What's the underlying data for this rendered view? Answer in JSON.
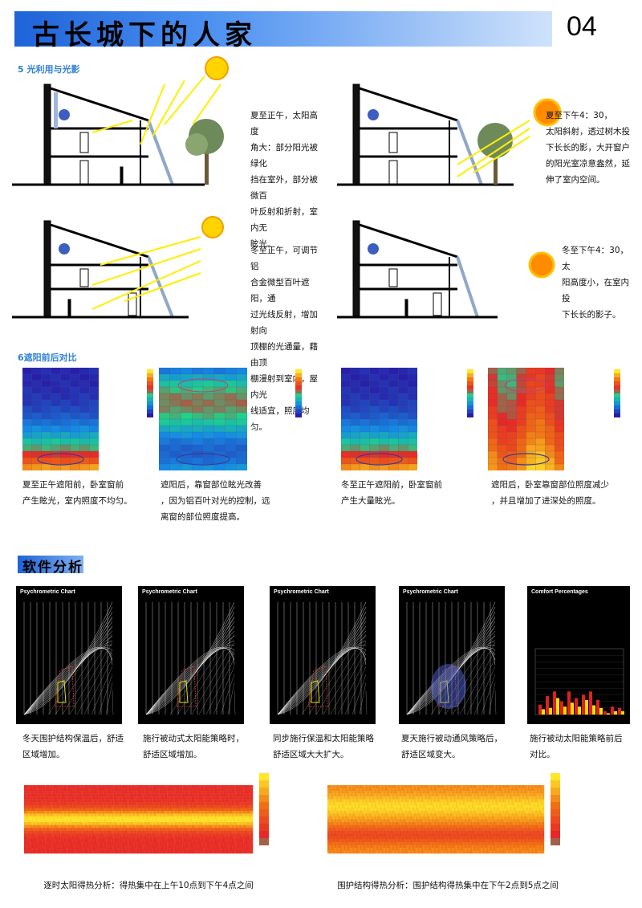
{
  "header": {
    "title": "古长城下的人家",
    "page_number": "04"
  },
  "section5": {
    "title": "5  光利用与光影",
    "panels": [
      {
        "caption": [
          "夏至正午，太阳高度",
          "角大：部分阳光被绿化",
          "挡在室外，部分被微百",
          "叶反射和折射，室内无",
          "眩光。"
        ]
      },
      {
        "caption": [
          "夏至下午4：30，",
          "太阳斜射，透过树木投",
          "下长长的影，大开窗户",
          "的阳光室凉意盎然，延",
          "伸了室内空间。"
        ]
      },
      {
        "caption": [
          "冬至正午，可调节铝",
          "合金微型百叶遮阳，通",
          "过光线反射，增加射向",
          "顶棚的光通量，藉由顶",
          "棚漫射到室内，屋内光",
          "线适宜，照度均匀。"
        ]
      },
      {
        "caption": [
          "冬至下午4：30，太",
          "阳高度小，在室内投",
          "下长长的影子。"
        ]
      }
    ]
  },
  "section6": {
    "title": "6遮阳前后对比",
    "captions": [
      [
        "夏至正午遮阳前，卧室窗前",
        "产生眩光，室内照度不均匀。"
      ],
      [
        "遮阳后，靠窗部位眩光改善",
        "，因为铝百叶对光的控制，远",
        "离窗的部位照度提高。"
      ],
      [
        "冬至正午遮阳前，卧室窗前",
        "产生大量眩光。"
      ],
      [
        "遮阳后，卧室靠窗部位照度减少",
        "，并且增加了进深处的照度。"
      ]
    ]
  },
  "software": {
    "title": "软件分析",
    "charts": [
      {
        "title": "Psychrometric Chart",
        "caption": [
          "冬天围护结构保温后，舒适",
          "区域增加。"
        ]
      },
      {
        "title": "Psychrometric Chart",
        "caption": [
          "施行被动式太阳能策略时，",
          "舒适区域增加。"
        ]
      },
      {
        "title": "Psychrometric Chart",
        "caption": [
          "同步施行保温和太阳能策略",
          "舒适区域大大扩大。"
        ]
      },
      {
        "title": "Psychrometric Chart",
        "caption": [
          "夏天施行被动通风策略后，",
          "舒适区域变大。"
        ]
      },
      {
        "title": "Comfort Percentages",
        "caption": [
          "施行被动太阳能策略前后",
          "对比。"
        ]
      }
    ],
    "heatmaps": [
      {
        "caption": "逐时太阳得热分析：得热集中在上午10点到下午4点之间"
      },
      {
        "caption": "围护结构得热分析：围护结构得热集中在下午2点到5点之间"
      }
    ]
  },
  "colors": {
    "header_blue": "#1e63d8",
    "section_blue": "#2f7fd6",
    "sun_yellow": "#ffd400",
    "sun_orange": "#ff8c00"
  }
}
